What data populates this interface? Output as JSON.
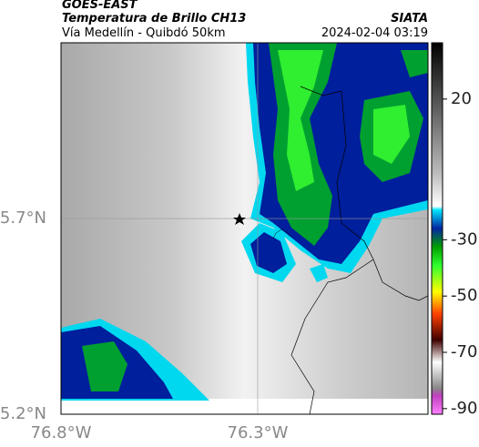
{
  "header": {
    "satellite": "GOES-EAST",
    "title": "Temperatura de Brillo CH13",
    "subtitle": "Vía Medellín - Quibdó 50km",
    "source": "SIATA",
    "datetime": "2024-02-04 03:19"
  },
  "map": {
    "xlim": [
      -76.8,
      -75.867
    ],
    "ylim": [
      5.2,
      6.149
    ],
    "xticks": [
      {
        "value": -76.8,
        "label": "76.8°W"
      },
      {
        "value": -76.3,
        "label": "76.3°W"
      }
    ],
    "yticks": [
      {
        "value": 5.2,
        "label": "5.2°N"
      },
      {
        "value": 5.7,
        "label": "5.7°N"
      }
    ],
    "grid": true
  },
  "colorbar": {
    "clim": [
      -92,
      40
    ],
    "ticks": [
      20,
      -30,
      -50,
      -70,
      -90
    ]
  }
}
